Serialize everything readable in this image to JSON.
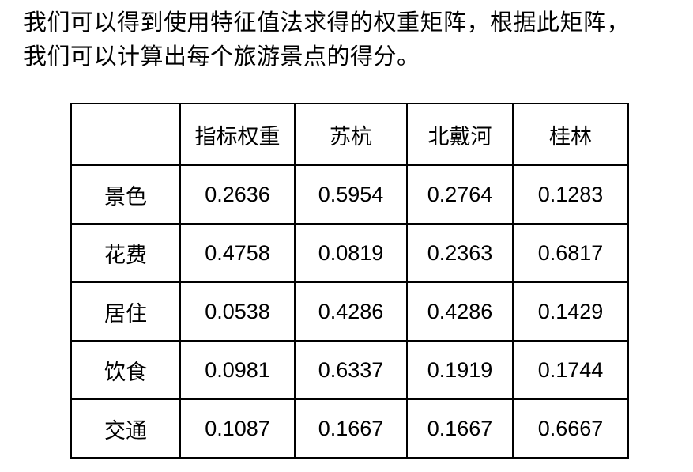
{
  "intro": {
    "line1": "我们可以得到使用特征值法求得的权重矩阵，根据此矩阵，",
    "line2": "我们可以计算出每个旅游景点的得分。"
  },
  "table": {
    "columns": [
      "",
      "指标权重",
      "苏杭",
      "北戴河",
      "桂林"
    ],
    "rows": [
      {
        "label": "景色",
        "values": [
          "0.2636",
          "0.5954",
          "0.2764",
          "0.1283"
        ]
      },
      {
        "label": "花费",
        "values": [
          "0.4758",
          "0.0819",
          "0.2363",
          "0.6817"
        ]
      },
      {
        "label": "居住",
        "values": [
          "0.0538",
          "0.4286",
          "0.4286",
          "0.1429"
        ]
      },
      {
        "label": "饮食",
        "values": [
          "0.0981",
          "0.6337",
          "0.1919",
          "0.1744"
        ]
      },
      {
        "label": "交通",
        "values": [
          "0.1087",
          "0.1667",
          "0.1667",
          "0.6667"
        ]
      }
    ],
    "colors": {
      "weight_column": "#9DC3E6",
      "row_scenery": "#F8CBAD",
      "row_cost": "#FFE699",
      "row_residence": "#A9D18E",
      "row_food": "#C2A3DB",
      "row_transport": "#D596A9",
      "border": "#000000"
    }
  }
}
